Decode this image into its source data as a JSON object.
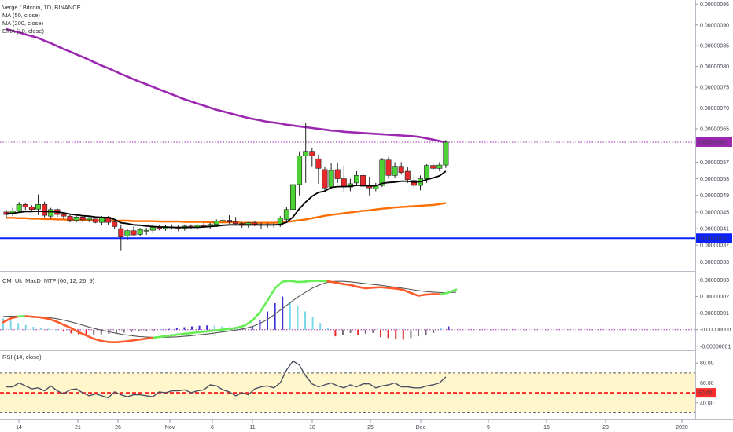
{
  "header": {
    "title": "Verge / Bitcoin, 1D, BINANCE",
    "indicators": [
      "MA (50, close)",
      "MA (200, close)",
      "EMA (10, close)"
    ]
  },
  "macd_panel": {
    "title": "CM_Ult_MacD_MTF (60, 12, 26, 9)"
  },
  "rsi_panel": {
    "title": "RSI (14, close)"
  },
  "colors": {
    "ma200": "#9c27b0",
    "ma50": "#ff6d00",
    "ema10": "#000000",
    "bull": "#4cd137",
    "bear": "#e8282b",
    "support": "#0b22ff",
    "rsi_band": "#fff6cc",
    "rsi_mid": "#ff2b2b"
  },
  "chart_data": [
    {
      "type": "candlestick",
      "title": "Verge / Bitcoin, 1D, BINANCE",
      "y_axis_ticks": [
        "0.00000095",
        "0.00000090",
        "0.00000085",
        "0.00000080",
        "0.00000075",
        "0.00000070",
        "0.00000065",
        "0.00000057",
        "0.00000053",
        "0.00000049",
        "0.00000045",
        "0.00000041",
        "0.00000037",
        "0.00000033"
      ],
      "ylim": [
        3.1e-07,
        9.6e-07
      ],
      "price_tags": [
        {
          "label": "0.00000062",
          "value": 6.18e-07,
          "kind": "current"
        },
        {
          "label": "0.00000039",
          "value": 3.87e-07,
          "kind": "support"
        }
      ],
      "x_axis_ticks": [
        "14",
        "21",
        "26",
        "Nov",
        "6",
        "11",
        "18",
        "25",
        "Dec",
        "9",
        "16",
        "23",
        "2020"
      ],
      "candles": [
        [
          4.5e-07,
          4.55e-07,
          4.37e-07,
          4.44e-07
        ],
        [
          4.46e-07,
          4.6e-07,
          4.4e-07,
          4.52e-07
        ],
        [
          4.52e-07,
          4.74e-07,
          4.48e-07,
          4.68e-07
        ],
        [
          4.68e-07,
          4.71e-07,
          4.55e-07,
          4.62e-07
        ],
        [
          4.62e-07,
          4.66e-07,
          4.5e-07,
          4.56e-07
        ],
        [
          4.57e-07,
          4.92e-07,
          4.43e-07,
          4.68e-07
        ],
        [
          4.68e-07,
          4.75e-07,
          4.37e-07,
          4.42e-07
        ],
        [
          4.4e-07,
          4.6e-07,
          4.33e-07,
          4.56e-07
        ],
        [
          4.56e-07,
          4.6e-07,
          4.38e-07,
          4.44e-07
        ],
        [
          4.44e-07,
          4.48e-07,
          4.33e-07,
          4.4e-07
        ],
        [
          4.4e-07,
          4.44e-07,
          4.25e-07,
          4.3e-07
        ],
        [
          4.3e-07,
          4.42e-07,
          4.25e-07,
          4.38e-07
        ],
        [
          4.38e-07,
          4.4e-07,
          4.25e-07,
          4.31e-07
        ],
        [
          4.31e-07,
          4.38e-07,
          4.26e-07,
          4.35e-07
        ],
        [
          4.33e-07,
          4.34e-07,
          4.23e-07,
          4.25e-07
        ],
        [
          4.25e-07,
          4.4e-07,
          4.18e-07,
          4.38e-07
        ],
        [
          4.38e-07,
          4.4e-07,
          4.18e-07,
          4.25e-07
        ],
        [
          4.26e-07,
          4.32e-07,
          4.1e-07,
          4.15e-07
        ],
        [
          4.1e-07,
          4.2e-07,
          3.58e-07,
          3.9e-07
        ],
        [
          3.92e-07,
          4.1e-07,
          3.83e-07,
          4.05e-07
        ],
        [
          4.05e-07,
          4.15e-07,
          3.92e-07,
          3.95e-07
        ],
        [
          3.96e-07,
          4.12e-07,
          3.92e-07,
          4.08e-07
        ],
        [
          4.04e-07,
          4.12e-07,
          3.95e-07,
          4.06e-07
        ],
        [
          4.06e-07,
          4.2e-07,
          3.98e-07,
          4.13e-07
        ],
        [
          4.13e-07,
          4.18e-07,
          4.06e-07,
          4.1e-07
        ],
        [
          4.1e-07,
          4.18e-07,
          4.05e-07,
          4.14e-07
        ],
        [
          4.14e-07,
          4.2e-07,
          4.08e-07,
          4.12e-07
        ],
        [
          4.12e-07,
          4.18e-07,
          4.04e-07,
          4.1e-07
        ],
        [
          4.1e-07,
          4.2e-07,
          4.05e-07,
          4.16e-07
        ],
        [
          4.16e-07,
          4.2e-07,
          4.08e-07,
          4.13e-07
        ],
        [
          4.13e-07,
          4.2e-07,
          4.08e-07,
          4.18e-07
        ],
        [
          4.18e-07,
          4.24e-07,
          4.12e-07,
          4.16e-07
        ],
        [
          4.16e-07,
          4.24e-07,
          4.1e-07,
          4.2e-07
        ],
        [
          4.2e-07,
          4.32e-07,
          4.15e-07,
          4.28e-07
        ],
        [
          4.28e-07,
          4.38e-07,
          4.2e-07,
          4.3e-07
        ],
        [
          4.3e-07,
          4.42e-07,
          4.22e-07,
          4.26e-07
        ],
        [
          4.26e-07,
          4.38e-07,
          4.18e-07,
          4.22e-07
        ],
        [
          4.22e-07,
          4.26e-07,
          4.12e-07,
          4.18e-07
        ],
        [
          4.18e-07,
          4.26e-07,
          4.12e-07,
          4.24e-07
        ],
        [
          4.24e-07,
          4.28e-07,
          4.16e-07,
          4.2e-07
        ],
        [
          4.2e-07,
          4.24e-07,
          4.1e-07,
          4.18e-07
        ],
        [
          4.18e-07,
          4.24e-07,
          4.12e-07,
          4.2e-07
        ],
        [
          4.2e-07,
          4.24e-07,
          4.12e-07,
          4.18e-07
        ],
        [
          4.18e-07,
          4.4e-07,
          4.14e-07,
          4.36e-07
        ],
        [
          4.32e-07,
          4.62e-07,
          4.28e-07,
          4.56e-07
        ],
        [
          4.56e-07,
          5.2e-07,
          4.52e-07,
          5.16e-07
        ],
        [
          5.16e-07,
          5.96e-07,
          4.9e-07,
          5.85e-07
        ],
        [
          5.85e-07,
          6.64e-07,
          5.2e-07,
          5.96e-07
        ],
        [
          5.96e-07,
          6.05e-07,
          5.6e-07,
          5.85e-07
        ],
        [
          5.78e-07,
          5.88e-07,
          5.18e-07,
          5.55e-07
        ],
        [
          5.52e-07,
          5.58e-07,
          5e-07,
          5.08e-07
        ],
        [
          5.1e-07,
          5.68e-07,
          5.05e-07,
          5.5e-07
        ],
        [
          5.52e-07,
          5.68e-07,
          5.2e-07,
          5.3e-07
        ],
        [
          5.3e-07,
          5.62e-07,
          4.98e-07,
          5.1e-07
        ],
        [
          5.1e-07,
          5.3e-07,
          5e-07,
          5.18e-07
        ],
        [
          5.2e-07,
          5.48e-07,
          5.12e-07,
          5.38e-07
        ],
        [
          5.38e-07,
          5.45e-07,
          5.08e-07,
          5.12e-07
        ],
        [
          5.12e-07,
          5.35e-07,
          4.9e-07,
          5.08e-07
        ],
        [
          5.06e-07,
          5.2e-07,
          5e-07,
          5.14e-07
        ],
        [
          5.14e-07,
          5.8e-07,
          5.1e-07,
          5.75e-07
        ],
        [
          5.75e-07,
          5.82e-07,
          5.3e-07,
          5.38e-07
        ],
        [
          5.38e-07,
          5.7e-07,
          5.33e-07,
          5.6e-07
        ],
        [
          5.6e-07,
          5.7e-07,
          5.4e-07,
          5.45e-07
        ],
        [
          5.48e-07,
          5.58e-07,
          5.2e-07,
          5.28e-07
        ],
        [
          5.26e-07,
          5.4e-07,
          5.08e-07,
          5.14e-07
        ],
        [
          5.14e-07,
          5.38e-07,
          5.02e-07,
          5.3e-07
        ],
        [
          5.3e-07,
          5.65e-07,
          5.2e-07,
          5.62e-07
        ],
        [
          5.62e-07,
          5.68e-07,
          5.5e-07,
          5.55e-07
        ],
        [
          5.55e-07,
          5.7e-07,
          5.48e-07,
          5.63e-07
        ],
        [
          5.63e-07,
          6.23e-07,
          5.56e-07,
          6.18e-07
        ]
      ],
      "series": [
        {
          "name": "MA (200, close)",
          "values": [
            8.9e-07,
            8.86e-07,
            8.82e-07,
            8.77e-07,
            8.73e-07,
            8.69e-07,
            8.62e-07,
            8.56e-07,
            8.49e-07,
            8.42e-07,
            8.36e-07,
            8.29e-07,
            8.23e-07,
            8.16e-07,
            8.09e-07,
            8.02e-07,
            7.96e-07,
            7.89e-07,
            7.82e-07,
            7.76e-07,
            7.69e-07,
            7.63e-07,
            7.57e-07,
            7.51e-07,
            7.45e-07,
            7.39e-07,
            7.33e-07,
            7.27e-07,
            7.21e-07,
            7.16e-07,
            7.11e-07,
            7.06e-07,
            7.01e-07,
            6.96e-07,
            6.92e-07,
            6.88e-07,
            6.84e-07,
            6.8e-07,
            6.76e-07,
            6.73e-07,
            6.7e-07,
            6.67e-07,
            6.65e-07,
            6.63e-07,
            6.6e-07,
            6.58e-07,
            6.56e-07,
            6.54e-07,
            6.52e-07,
            6.5e-07,
            6.48e-07,
            6.46e-07,
            6.45e-07,
            6.43e-07,
            6.42e-07,
            6.41e-07,
            6.4e-07,
            6.39e-07,
            6.38e-07,
            6.37e-07,
            6.36e-07,
            6.35e-07,
            6.34e-07,
            6.33e-07,
            6.32e-07,
            6.3e-07,
            6.27e-07,
            6.24e-07,
            6.21e-07,
            6.17e-07
          ]
        },
        {
          "name": "MA (50, close)",
          "values": [
            4.36e-07,
            4.36e-07,
            4.35e-07,
            4.35e-07,
            4.34e-07,
            4.34e-07,
            4.33e-07,
            4.33e-07,
            4.32e-07,
            4.32e-07,
            4.31e-07,
            4.31e-07,
            4.31e-07,
            4.3e-07,
            4.3e-07,
            4.3e-07,
            4.29e-07,
            4.29e-07,
            4.29e-07,
            4.29e-07,
            4.28e-07,
            4.28e-07,
            4.28e-07,
            4.28e-07,
            4.27e-07,
            4.27e-07,
            4.27e-07,
            4.27e-07,
            4.26e-07,
            4.26e-07,
            4.26e-07,
            4.26e-07,
            4.25e-07,
            4.25e-07,
            4.25e-07,
            4.25e-07,
            4.25e-07,
            4.24e-07,
            4.24e-07,
            4.24e-07,
            4.24e-07,
            4.24e-07,
            4.24e-07,
            4.25e-07,
            4.26e-07,
            4.28e-07,
            4.3e-07,
            4.32e-07,
            4.35e-07,
            4.38e-07,
            4.41e-07,
            4.43e-07,
            4.45e-07,
            4.47e-07,
            4.49e-07,
            4.51e-07,
            4.53e-07,
            4.54e-07,
            4.56e-07,
            4.58e-07,
            4.59e-07,
            4.61e-07,
            4.62e-07,
            4.63e-07,
            4.64e-07,
            4.65e-07,
            4.66e-07,
            4.67e-07,
            4.69e-07,
            4.72e-07
          ]
        },
        {
          "name": "EMA (10, close)",
          "values": [
            4.46e-07,
            4.47e-07,
            4.49e-07,
            4.51e-07,
            4.51e-07,
            4.52e-07,
            4.51e-07,
            4.51e-07,
            4.5e-07,
            4.48e-07,
            4.45e-07,
            4.43e-07,
            4.41e-07,
            4.4e-07,
            4.38e-07,
            4.37e-07,
            4.36e-07,
            4.32e-07,
            4.24e-07,
            4.22e-07,
            4.19e-07,
            4.18e-07,
            4.16e-07,
            4.15e-07,
            4.14e-07,
            4.14e-07,
            4.13e-07,
            4.13e-07,
            4.13e-07,
            4.13e-07,
            4.13e-07,
            4.14e-07,
            4.15e-07,
            4.16e-07,
            4.18e-07,
            4.19e-07,
            4.19e-07,
            4.19e-07,
            4.19e-07,
            4.19e-07,
            4.19e-07,
            4.19e-07,
            4.19e-07,
            4.2e-07,
            4.25e-07,
            4.38e-07,
            4.58e-07,
            4.74e-07,
            4.88e-07,
            4.97e-07,
            5e-07,
            5.09e-07,
            5.11e-07,
            5.11e-07,
            5.12e-07,
            5.14e-07,
            5.14e-07,
            5.13e-07,
            5.13e-07,
            5.19e-07,
            5.21e-07,
            5.22e-07,
            5.24e-07,
            5.24e-07,
            5.22e-07,
            5.23e-07,
            5.28e-07,
            5.32e-07,
            5.37e-07,
            5.48e-07
          ]
        }
      ]
    },
    {
      "type": "line",
      "title": "CM_Ult_MacD_MTF (60, 12, 26, 9)",
      "y_axis_ticks": [
        "0.00000003",
        "0.00000002",
        "0.00000001",
        "-0.00000000",
        "-0.00000001"
      ],
      "ylim": [
        -1.2e-08,
        3.45e-08
      ],
      "series": [
        {
          "name": "MACD",
          "values": [
            4.5e-09,
            6.8e-09,
            8e-09,
            8.2e-09,
            7.8e-09,
            7.4e-09,
            6.6e-09,
            5e-09,
            3e-09,
            1e-09,
            -1.5e-09,
            -3.5e-09,
            -5.5e-09,
            -6.8e-09,
            -7.5e-09,
            -7.6e-09,
            -7.2e-09,
            -6.6e-09,
            -6e-09,
            -5.4e-09,
            -4.8e-09,
            -4.2e-09,
            -3.6e-09,
            -3e-09,
            -2.5e-09,
            -2e-09,
            -1.5e-09,
            -1e-09,
            -5e-10,
            0.0,
            5e-10,
            1.2e-09,
            2.5e-09,
            5.5e-09,
            1.05e-08,
            1.75e-08,
            2.5e-08,
            2.9e-08,
            2.95e-08,
            2.88e-08,
            2.9e-08,
            2.95e-08,
            2.95e-08,
            2.92e-08,
            2.85e-08,
            2.76e-08,
            2.7e-08,
            2.58e-08,
            2.5e-08,
            2.54e-08,
            2.56e-08,
            2.52e-08,
            2.48e-08,
            2.4e-08,
            2.22e-08,
            2.05e-08,
            2.12e-08,
            2.15e-08,
            2.13e-08,
            2.25e-08,
            2.42e-08
          ]
        },
        {
          "name": "Signal",
          "values": [
            8e-09,
            8.1e-09,
            8.2e-09,
            8.1e-09,
            8e-09,
            7.7e-09,
            7.3e-09,
            6.7e-09,
            5.8e-09,
            4.7e-09,
            3.4e-09,
            2.1e-09,
            8e-10,
            -3e-10,
            -1.3e-09,
            -2.2e-09,
            -3e-09,
            -3.6e-09,
            -4.1e-09,
            -4.4e-09,
            -4.6e-09,
            -4.6e-09,
            -4.5e-09,
            -4.3e-09,
            -4e-09,
            -3.6e-09,
            -3.1e-09,
            -2.6e-09,
            -2e-09,
            -1.4e-09,
            -8e-10,
            -1e-10,
            7e-10,
            1.9e-09,
            3.7e-09,
            6.2e-09,
            9.4e-09,
            1.28e-08,
            1.63e-08,
            1.96e-08,
            2.25e-08,
            2.52e-08,
            2.72e-08,
            2.86e-08,
            2.92e-08,
            2.92e-08,
            2.89e-08,
            2.84e-08,
            2.78e-08,
            2.73e-08,
            2.68e-08,
            2.62e-08,
            2.56e-08,
            2.5e-08,
            2.43e-08,
            2.36e-08,
            2.3e-08,
            2.27e-08,
            2.24e-08,
            2.24e-08,
            2.26e-08
          ]
        }
      ],
      "histogram": [
        6.8e-09,
        5.5e-09,
        4e-09,
        2.8e-09,
        1.8e-09,
        1e-09,
        6e-10,
        2e-10,
        -1.2e-09,
        -2.2e-09,
        -2.8e-09,
        -3e-09,
        -3e-09,
        -2.8e-09,
        -2.5e-09,
        -2.2e-09,
        -1.8e-09,
        -1.4e-09,
        -1e-09,
        -6e-10,
        -3e-10,
        2e-10,
        5e-10,
        1e-09,
        1.5e-09,
        2e-09,
        2.4e-09,
        2.6e-09,
        2.4e-09,
        2e-09,
        1.6e-09,
        1.2e-09,
        1e-09,
        2e-09,
        6e-09,
        1.1e-08,
        1.6e-08,
        2e-08,
        1.7e-08,
        1.4e-08,
        1.1e-08,
        7.5e-09,
        4e-09,
        1e-09,
        -4e-09,
        -3e-09,
        -2e-09,
        -3e-09,
        -2.5e-09,
        -2e-09,
        -4.5e-09,
        -5e-09,
        -5.5e-09,
        -6e-09,
        -5e-09,
        -4e-09,
        -3.5e-09,
        -2e-09,
        1e-09,
        2e-09
      ]
    },
    {
      "type": "line",
      "title": "RSI (14, close)",
      "y_axis_ticks": [
        "80.00",
        "60.00",
        "40.00"
      ],
      "ylim": [
        24,
        92
      ],
      "band": [
        30,
        70
      ],
      "midline": {
        "label": "50.00",
        "value": 50
      },
      "series": [
        {
          "name": "RSI (14, close)",
          "values": [
            56,
            56,
            60,
            57,
            54,
            55,
            52,
            57,
            52,
            49,
            53,
            54,
            50,
            47,
            49,
            47,
            45,
            51,
            48,
            46,
            48,
            48,
            47,
            46,
            51,
            50,
            52,
            52,
            53,
            50,
            52,
            53,
            58,
            57,
            53,
            51,
            47,
            50,
            48,
            54,
            56,
            57,
            55,
            60,
            73,
            82,
            78,
            67,
            59,
            56,
            58,
            60,
            57,
            55,
            58,
            56,
            59,
            59,
            55,
            57,
            58,
            60,
            56,
            56,
            55,
            55,
            57,
            58,
            60,
            66
          ]
        }
      ]
    }
  ]
}
